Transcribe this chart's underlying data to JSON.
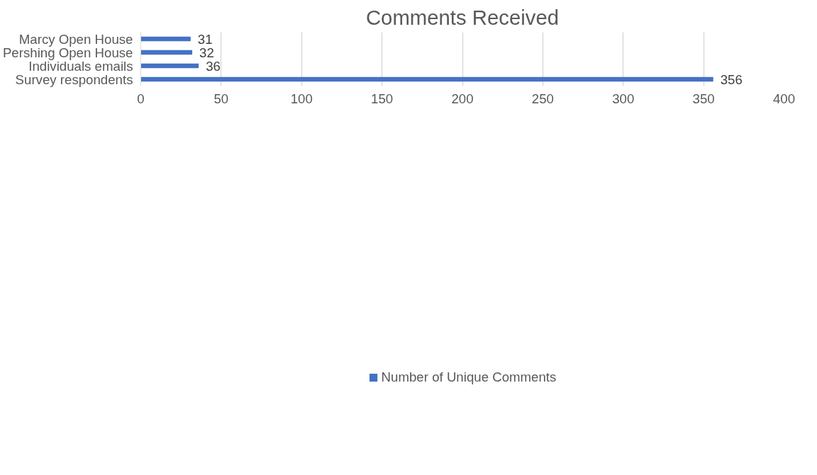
{
  "chart_data": {
    "type": "bar",
    "orientation": "horizontal",
    "title": "Comments Received",
    "categories": [
      "Marcy Open House",
      "Pershing Open House",
      "Individuals emails",
      "Survey respondents"
    ],
    "series": [
      {
        "name": "Number of Unique Comments",
        "color": "#4472c4",
        "values": [
          31,
          32,
          36,
          356
        ]
      }
    ],
    "xlim": [
      0,
      400
    ],
    "xticks": [
      0,
      50,
      100,
      150,
      200,
      250,
      300,
      350,
      400
    ],
    "grid": "x",
    "legend": "bottom",
    "data_labels": true
  }
}
